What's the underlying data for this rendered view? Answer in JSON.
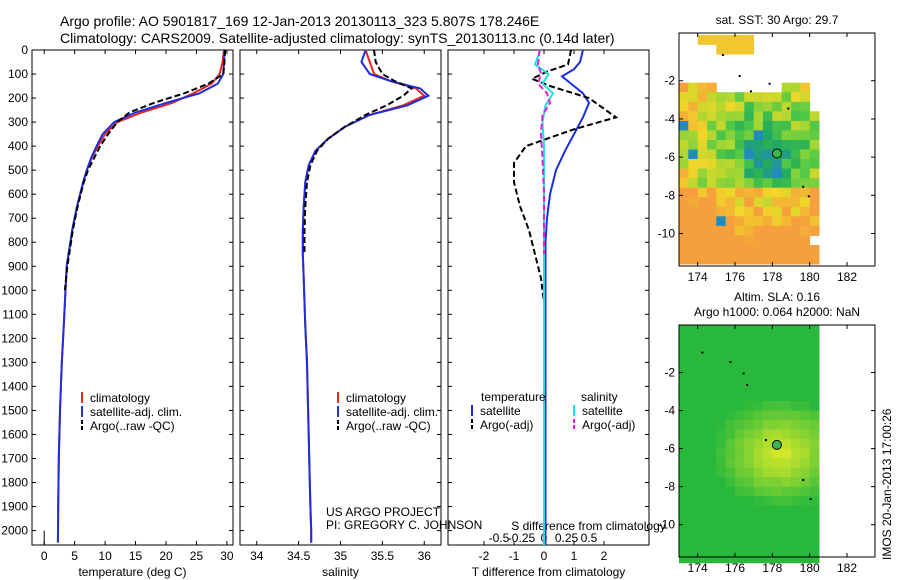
{
  "header": {
    "line1": "Argo profile: AO 5901817_169 12-Jan-2013 20130113_323 5.807S 178.246E",
    "line2": "Climatology: CARS2009. Satellite-adjusted climatology: synTS_20130113.nc (0.14d later)"
  },
  "stamp": "IMOS 20-Jan-2013 17:00:26",
  "credit": {
    "line1": "US ARGO PROJECT",
    "line2": "PI: GREGORY C. JOHNSON"
  },
  "colors": {
    "climatology": "#e8281e",
    "satellite": "#1c2ee0",
    "argo": "#000000",
    "sal_satellite": "#22e0e0",
    "sal_argo": "#e020e0"
  },
  "chart_data": [
    {
      "type": "line",
      "title": "",
      "xlabel": "temperature (deg C)",
      "ylabel": "",
      "xlim": [
        -2,
        31
      ],
      "ylim": [
        2060,
        0
      ],
      "xticks": [
        0,
        5,
        10,
        15,
        20,
        25,
        30
      ],
      "yticks": [
        0,
        100,
        200,
        300,
        400,
        500,
        600,
        700,
        800,
        900,
        1000,
        1100,
        1200,
        1300,
        1400,
        1500,
        1600,
        1700,
        1800,
        1900,
        2000
      ],
      "legend": [
        "climatology",
        "satellite-adj. clim.",
        "Argo(..raw -QC)"
      ],
      "series": [
        {
          "name": "climatology",
          "color": "climatology",
          "dash": "",
          "x": [
            29.5,
            29.3,
            28.8,
            27.5,
            24.5,
            21,
            16,
            12,
            10,
            8.8,
            7.8,
            7,
            6.4,
            5.9,
            5.4,
            5,
            4.6,
            4.3,
            4,
            3.7,
            3.5,
            3.3,
            3.1,
            2.9,
            2.75,
            2.6,
            2.5,
            2.4,
            2.35,
            2.3,
            2.25
          ],
          "y": [
            0,
            50,
            100,
            140,
            180,
            220,
            260,
            300,
            350,
            400,
            450,
            500,
            550,
            600,
            650,
            700,
            750,
            800,
            850,
            900,
            1000,
            1100,
            1200,
            1300,
            1400,
            1500,
            1600,
            1700,
            1800,
            1900,
            2050
          ]
        },
        {
          "name": "satellite",
          "color": "satellite",
          "dash": "",
          "x": [
            29.6,
            29.5,
            29.4,
            28.5,
            25.5,
            20,
            15,
            11.5,
            9.6,
            8.6,
            7.7,
            7,
            6.4,
            5.9,
            5.4,
            5,
            4.6,
            4.3,
            4,
            3.7,
            3.5,
            3.3,
            3.1,
            2.9,
            2.75,
            2.6,
            2.5,
            2.4,
            2.35,
            2.3,
            2.25
          ],
          "y": [
            0,
            50,
            100,
            140,
            180,
            220,
            260,
            300,
            350,
            400,
            450,
            500,
            550,
            600,
            650,
            700,
            750,
            800,
            850,
            900,
            1000,
            1100,
            1200,
            1300,
            1400,
            1500,
            1600,
            1700,
            1800,
            1900,
            2050
          ]
        },
        {
          "name": "argo",
          "color": "argo",
          "dash": "6,3",
          "x": [
            29.7,
            29.6,
            29.4,
            27,
            23,
            18,
            14,
            12,
            10.5,
            9.2,
            8.2,
            7.2,
            6.5,
            6,
            5.5,
            5.1,
            4.7,
            4.4,
            4.1,
            3.8,
            3.6,
            3.4
          ],
          "y": [
            0,
            50,
            100,
            140,
            180,
            220,
            260,
            300,
            350,
            400,
            450,
            500,
            550,
            600,
            650,
            700,
            750,
            800,
            850,
            900,
            950,
            1000
          ]
        }
      ]
    },
    {
      "type": "line",
      "title": "",
      "xlabel": "salinity",
      "ylabel": "",
      "xlim": [
        33.8,
        36.2
      ],
      "ylim": [
        2060,
        0
      ],
      "xticks": [
        34,
        34.5,
        35,
        35.5,
        36
      ],
      "yticks": [
        0,
        100,
        200,
        300,
        400,
        500,
        600,
        700,
        800,
        900,
        1000,
        1100,
        1200,
        1300,
        1400,
        1500,
        1600,
        1700,
        1800,
        1900,
        2000
      ],
      "legend": [
        "climatology",
        "satellite-adj. clim.",
        "Argo(..raw -QC)"
      ],
      "series": [
        {
          "name": "climatology",
          "color": "climatology",
          "dash": "",
          "x": [
            35.3,
            35.35,
            35.4,
            35.6,
            35.9,
            36.0,
            35.75,
            35.35,
            35.05,
            34.85,
            34.7,
            34.62,
            34.58,
            34.56,
            34.55,
            34.55,
            34.56,
            34.57,
            34.58,
            34.6,
            34.61,
            34.62,
            34.63,
            34.64,
            34.65,
            34.65
          ],
          "y": [
            0,
            50,
            100,
            130,
            160,
            190,
            230,
            270,
            320,
            370,
            420,
            480,
            550,
            650,
            750,
            850,
            950,
            1050,
            1150,
            1300,
            1450,
            1600,
            1750,
            1900,
            2000,
            2050
          ]
        },
        {
          "name": "satellite",
          "color": "satellite",
          "dash": "",
          "x": [
            35.3,
            35.25,
            35.35,
            35.6,
            35.95,
            36.05,
            35.8,
            35.35,
            35.05,
            34.85,
            34.7,
            34.62,
            34.58,
            34.56,
            34.55,
            34.55,
            34.56,
            34.57,
            34.58,
            34.6,
            34.61,
            34.62,
            34.63,
            34.64,
            34.65,
            34.65
          ],
          "y": [
            0,
            50,
            100,
            130,
            160,
            190,
            230,
            270,
            320,
            370,
            420,
            480,
            550,
            650,
            750,
            850,
            950,
            1050,
            1150,
            1300,
            1450,
            1600,
            1750,
            1900,
            2000,
            2050
          ]
        },
        {
          "name": "argo",
          "color": "argo",
          "dash": "6,3",
          "x": [
            35.4,
            35.42,
            35.5,
            35.65,
            35.85,
            35.75,
            35.55,
            35.3,
            35.05,
            34.85,
            34.72,
            34.64,
            34.6,
            34.58,
            34.57,
            34.57
          ],
          "y": [
            0,
            50,
            100,
            130,
            160,
            190,
            230,
            270,
            320,
            370,
            420,
            480,
            550,
            650,
            750,
            850
          ]
        }
      ]
    },
    {
      "type": "line",
      "title": "",
      "xlabel": "T difference from climatology",
      "x2label": "S difference from climatology",
      "ylabel": "",
      "xlim": [
        -3.2,
        3.5
      ],
      "ylim": [
        2060,
        0
      ],
      "xticks": [
        -2,
        -1,
        0,
        1,
        2
      ],
      "x2ticks": [
        -0.5,
        -0.25,
        0,
        0.25,
        0.5
      ],
      "yticks": [
        0,
        100,
        200,
        300,
        400,
        500,
        600,
        700,
        800,
        900,
        1000,
        1100,
        1200,
        1300,
        1400,
        1500,
        1600,
        1700,
        1800,
        1900,
        2000
      ],
      "legend_headers": [
        "temperature",
        "salinity"
      ],
      "legend": [
        "satellite",
        "Argo(-adj)",
        "satellite",
        "Argo(-adj)"
      ],
      "series": [
        {
          "name": "T satellite",
          "color": "satellite",
          "dash": "",
          "x": [
            1.3,
            1.2,
            1.0,
            0.6,
            0.9,
            1.3,
            1.5,
            1.3,
            1.0,
            0.7,
            0.4,
            0.2,
            0.1,
            0.05,
            0.05,
            0.05,
            0.05,
            0.05,
            0.05,
            0.05,
            0.05,
            0.05,
            0.05,
            0.05
          ],
          "y": [
            0,
            50,
            80,
            110,
            140,
            180,
            220,
            280,
            350,
            420,
            500,
            600,
            700,
            800,
            900,
            1000,
            1200,
            1400,
            1600,
            1800,
            1900,
            2000,
            2050,
            2060
          ]
        },
        {
          "name": "T argo",
          "color": "argo",
          "dash": "6,3",
          "x": [
            0.9,
            0.8,
            0.1,
            -0.4,
            0.2,
            1.5,
            2.4,
            1.0,
            -0.6,
            -1.0,
            -1.0,
            -0.8,
            -0.5,
            -0.3,
            -0.1,
            0.0,
            0.0
          ],
          "y": [
            0,
            60,
            90,
            120,
            150,
            200,
            280,
            330,
            400,
            470,
            550,
            650,
            750,
            850,
            950,
            1050,
            1150
          ]
        },
        {
          "name": "S satellite",
          "color": "sal_satellite",
          "dash": "",
          "x": [
            -0.12,
            -0.3,
            0.15,
            -0.05,
            0.3,
            0.05,
            -0.05,
            0.0,
            0.0,
            0.0,
            0.0,
            0.0,
            0.0,
            0.0,
            0.0,
            0.0,
            0.0
          ],
          "y": [
            0,
            60,
            100,
            140,
            180,
            230,
            300,
            400,
            500,
            700,
            900,
            1100,
            1300,
            1500,
            1700,
            1900,
            2060
          ]
        },
        {
          "name": "S argo",
          "color": "sal_argo",
          "dash": "6,3",
          "x": [
            -0.15,
            -0.2,
            -0.1,
            -0.2,
            0.1,
            0.2,
            -0.05,
            -0.1,
            -0.05,
            0.0,
            0.0,
            0.0
          ],
          "y": [
            0,
            60,
            100,
            140,
            180,
            220,
            270,
            350,
            450,
            600,
            750,
            850
          ]
        }
      ]
    },
    {
      "type": "heatmap",
      "title": "sat. SST: 30 Argo: 29.7",
      "xticks": [
        174,
        176,
        178,
        180,
        182
      ],
      "yticks": [
        -2,
        -4,
        -6,
        -8,
        -10
      ],
      "xlim": [
        173,
        183.5
      ],
      "ylim": [
        -11.7,
        0.5
      ],
      "data_extent": [
        173,
        180.2,
        -11.2,
        0.4
      ],
      "argo_position": {
        "lon": 178.246,
        "lat": -5.807
      }
    },
    {
      "type": "heatmap",
      "title": "Altim. SLA: 0.16",
      "subtitle": "Argo h1000: 0.064 h2000: NaN",
      "xticks": [
        174,
        176,
        178,
        180,
        182
      ],
      "yticks": [
        -2,
        -4,
        -6,
        -8,
        -10
      ],
      "xlim": [
        173,
        183.5
      ],
      "ylim": [
        -11.7,
        0.5
      ],
      "data_extent": [
        173,
        180.2,
        -11.7,
        0.5
      ],
      "argo_position": {
        "lon": 178.246,
        "lat": -5.807
      }
    }
  ]
}
